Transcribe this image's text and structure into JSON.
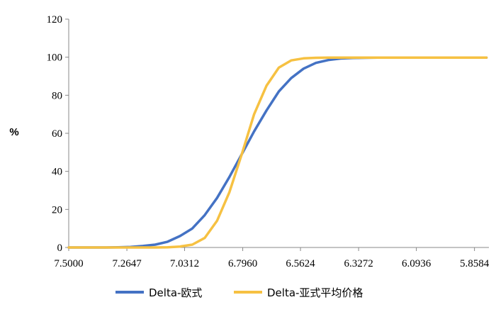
{
  "chart_data": {
    "type": "line",
    "title": "",
    "xlabel": "",
    "ylabel": "%",
    "ylim": [
      0,
      120
    ],
    "yticks": [
      0,
      20,
      40,
      60,
      80,
      100,
      120
    ],
    "xticks": [
      "7.5000",
      "7.2647",
      "7.0312",
      "6.7960",
      "6.5624",
      "6.3272",
      "6.0936",
      "5.8584"
    ],
    "xlim": [
      7.5,
      5.8
    ],
    "x_reversed": true,
    "grid": false,
    "legend": "bottom",
    "x": [
      7.5,
      7.45,
      7.4,
      7.35,
      7.3,
      7.25,
      7.2,
      7.15,
      7.1,
      7.05,
      7.0,
      6.95,
      6.9,
      6.85,
      6.8,
      6.75,
      6.7,
      6.65,
      6.6,
      6.55,
      6.5,
      6.45,
      6.4,
      6.35,
      6.3,
      6.25,
      6.2,
      6.15,
      6.1,
      6.05,
      6.0,
      5.95,
      5.9,
      5.85,
      5.81
    ],
    "series": [
      {
        "name": "Delta-欧式",
        "color": "#4472C4",
        "values": [
          0,
          0,
          0,
          0,
          0.1,
          0.3,
          0.8,
          1.5,
          3,
          6,
          10,
          17,
          26,
          37,
          49,
          61,
          72,
          82,
          89,
          94,
          97,
          98.5,
          99.3,
          99.6,
          99.7,
          99.8,
          99.8,
          99.8,
          99.8,
          99.8,
          99.8,
          99.8,
          99.8,
          99.8,
          99.8
        ]
      },
      {
        "name": "Delta-亚式平均价格",
        "color": "#F6C142",
        "values": [
          0,
          0,
          0,
          0,
          0,
          0,
          0,
          0,
          0.1,
          0.5,
          1.5,
          5,
          14,
          29,
          49,
          70,
          85,
          94.5,
          98.3,
          99.4,
          99.7,
          99.8,
          99.8,
          99.8,
          99.8,
          99.8,
          99.8,
          99.8,
          99.8,
          99.8,
          99.8,
          99.8,
          99.8,
          99.8,
          99.8
        ]
      }
    ]
  }
}
